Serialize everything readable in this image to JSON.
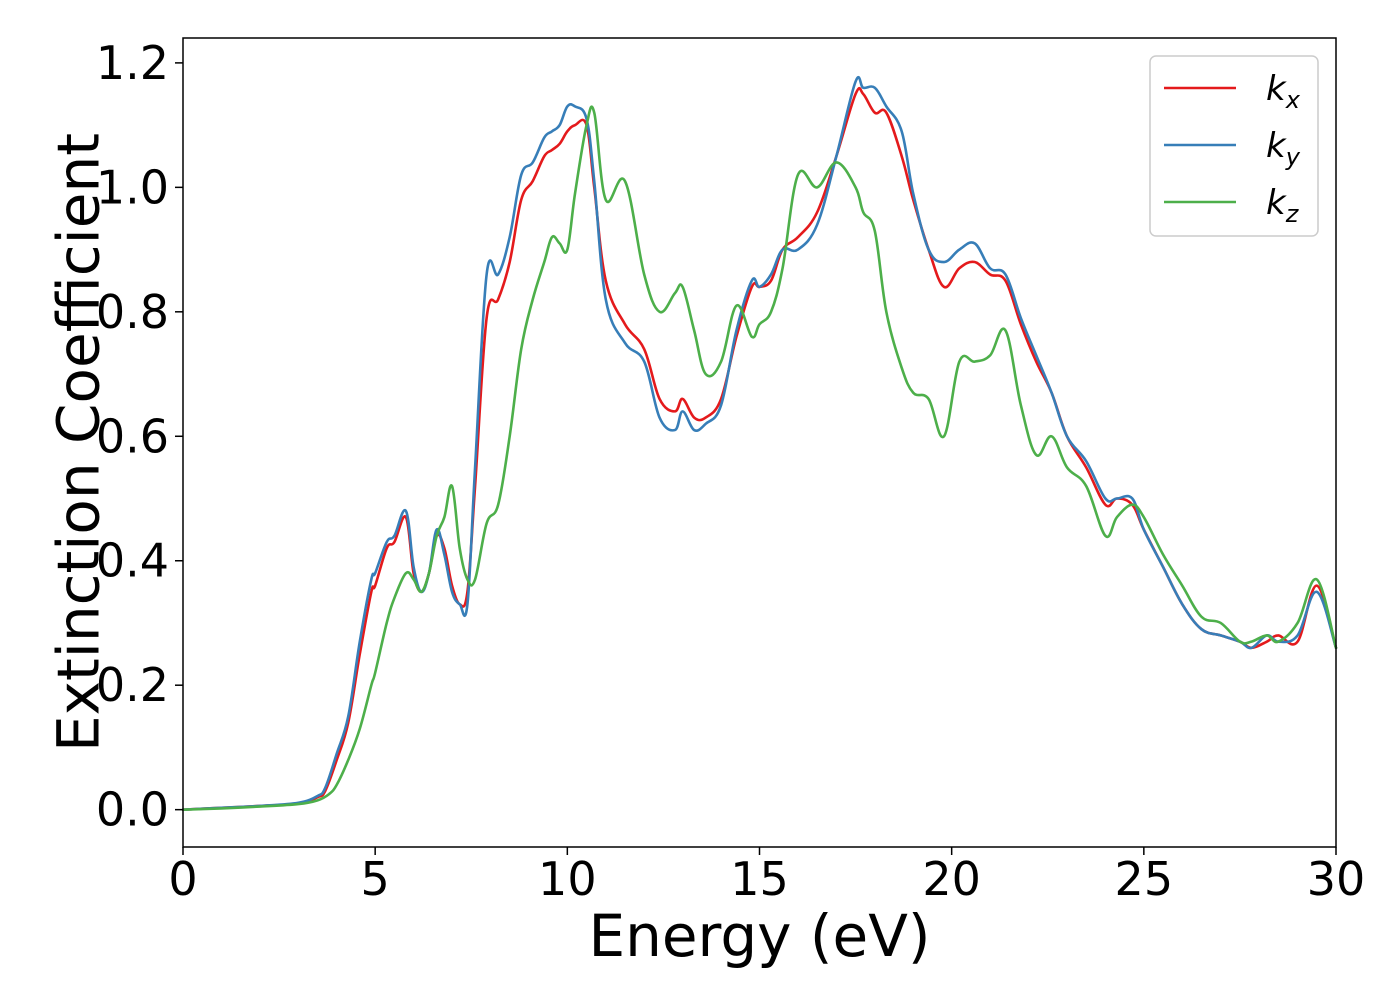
{
  "chart_data": {
    "type": "line",
    "title": "",
    "xlabel": "Energy (eV)",
    "ylabel": "Extinction Coefficient",
    "xlim": [
      0,
      30
    ],
    "ylim": [
      -0.06,
      1.24
    ],
    "xticks": [
      "0",
      "5",
      "10",
      "15",
      "20",
      "25",
      "30"
    ],
    "yticks": [
      "0.0",
      "0.2",
      "0.4",
      "0.6",
      "0.8",
      "1.0",
      "1.2"
    ],
    "grid": false,
    "legend_position": "top-right",
    "series": [
      {
        "name": "k",
        "subscript": "x",
        "color": "#e41a1c",
        "x": [
          0,
          1,
          2,
          3,
          3.5,
          3.7,
          4,
          4.3,
          4.6,
          4.9,
          5.0,
          5.3,
          5.5,
          5.8,
          6.0,
          6.2,
          6.4,
          6.6,
          6.8,
          7.0,
          7.2,
          7.4,
          7.6,
          7.9,
          8.2,
          8.5,
          8.8,
          9.1,
          9.4,
          9.6,
          9.8,
          10.0,
          10.2,
          10.5,
          10.7,
          11.0,
          11.5,
          12.0,
          12.4,
          12.8,
          13.0,
          13.3,
          13.6,
          14.0,
          14.4,
          14.8,
          15.0,
          15.3,
          15.6,
          16.0,
          16.5,
          17.0,
          17.5,
          17.7,
          18.0,
          18.3,
          18.7,
          19.0,
          19.4,
          19.8,
          20.2,
          20.6,
          21.0,
          21.4,
          21.8,
          22.2,
          22.6,
          23.0,
          23.5,
          24.0,
          24.3,
          24.7,
          25.0,
          25.5,
          26.0,
          26.5,
          27.0,
          27.5,
          27.8,
          28.2,
          28.5,
          29.0,
          29.5,
          30.0
        ],
        "y": [
          0.0,
          0.003,
          0.006,
          0.01,
          0.02,
          0.03,
          0.08,
          0.14,
          0.25,
          0.35,
          0.36,
          0.42,
          0.43,
          0.47,
          0.38,
          0.35,
          0.38,
          0.44,
          0.42,
          0.36,
          0.33,
          0.35,
          0.52,
          0.79,
          0.82,
          0.88,
          0.98,
          1.01,
          1.05,
          1.06,
          1.07,
          1.09,
          1.1,
          1.1,
          1.0,
          0.85,
          0.78,
          0.74,
          0.66,
          0.64,
          0.66,
          0.63,
          0.63,
          0.66,
          0.76,
          0.84,
          0.84,
          0.85,
          0.9,
          0.92,
          0.96,
          1.05,
          1.15,
          1.15,
          1.12,
          1.12,
          1.05,
          0.98,
          0.9,
          0.84,
          0.87,
          0.88,
          0.86,
          0.85,
          0.78,
          0.72,
          0.67,
          0.6,
          0.55,
          0.49,
          0.5,
          0.49,
          0.45,
          0.39,
          0.33,
          0.29,
          0.28,
          0.27,
          0.26,
          0.27,
          0.28,
          0.27,
          0.36,
          0.26
        ]
      },
      {
        "name": "k",
        "subscript": "y",
        "color": "#377eb8",
        "x": [
          0,
          1,
          2,
          3,
          3.5,
          3.7,
          4,
          4.3,
          4.6,
          4.9,
          5.0,
          5.3,
          5.5,
          5.8,
          6.0,
          6.2,
          6.4,
          6.6,
          6.8,
          7.0,
          7.2,
          7.4,
          7.6,
          7.9,
          8.2,
          8.5,
          8.8,
          9.1,
          9.4,
          9.6,
          9.8,
          10.0,
          10.2,
          10.5,
          10.7,
          11.0,
          11.5,
          12.0,
          12.4,
          12.8,
          13.0,
          13.3,
          13.6,
          14.0,
          14.4,
          14.8,
          15.0,
          15.3,
          15.6,
          16.0,
          16.5,
          17.0,
          17.5,
          17.7,
          18.0,
          18.3,
          18.7,
          19.0,
          19.4,
          19.8,
          20.2,
          20.6,
          21.0,
          21.4,
          21.8,
          22.2,
          22.6,
          23.0,
          23.5,
          24.0,
          24.3,
          24.7,
          25.0,
          25.5,
          26.0,
          26.5,
          27.0,
          27.5,
          27.8,
          28.2,
          28.5,
          29.0,
          29.5,
          30.0
        ],
        "y": [
          0.0,
          0.003,
          0.006,
          0.011,
          0.022,
          0.035,
          0.09,
          0.15,
          0.27,
          0.37,
          0.38,
          0.43,
          0.44,
          0.48,
          0.39,
          0.35,
          0.38,
          0.45,
          0.41,
          0.35,
          0.33,
          0.33,
          0.55,
          0.86,
          0.86,
          0.92,
          1.02,
          1.04,
          1.08,
          1.09,
          1.1,
          1.13,
          1.13,
          1.11,
          1.01,
          0.82,
          0.75,
          0.72,
          0.63,
          0.61,
          0.64,
          0.61,
          0.62,
          0.65,
          0.77,
          0.85,
          0.84,
          0.86,
          0.9,
          0.9,
          0.94,
          1.05,
          1.17,
          1.16,
          1.16,
          1.13,
          1.09,
          0.99,
          0.9,
          0.88,
          0.9,
          0.91,
          0.87,
          0.86,
          0.79,
          0.73,
          0.67,
          0.6,
          0.56,
          0.5,
          0.5,
          0.5,
          0.45,
          0.39,
          0.33,
          0.29,
          0.28,
          0.27,
          0.26,
          0.28,
          0.27,
          0.28,
          0.35,
          0.26
        ]
      },
      {
        "name": "k",
        "subscript": "z",
        "color": "#4daf4a",
        "x": [
          0,
          1,
          2,
          3,
          3.5,
          3.8,
          4,
          4.3,
          4.6,
          4.9,
          5.0,
          5.3,
          5.5,
          5.8,
          6.0,
          6.2,
          6.4,
          6.6,
          6.8,
          7.0,
          7.2,
          7.4,
          7.6,
          7.9,
          8.2,
          8.5,
          8.8,
          9.1,
          9.4,
          9.6,
          9.8,
          10.0,
          10.2,
          10.5,
          10.7,
          11.0,
          11.5,
          12.0,
          12.4,
          12.8,
          13.0,
          13.3,
          13.6,
          14.0,
          14.4,
          14.8,
          15.0,
          15.3,
          15.6,
          16.0,
          16.5,
          17.0,
          17.5,
          17.7,
          18.0,
          18.3,
          18.7,
          19.0,
          19.4,
          19.8,
          20.2,
          20.6,
          21.0,
          21.4,
          21.8,
          22.2,
          22.6,
          23.0,
          23.5,
          24.0,
          24.3,
          24.7,
          25.0,
          25.5,
          26.0,
          26.5,
          27.0,
          27.5,
          27.8,
          28.2,
          28.5,
          29.0,
          29.5,
          30.0
        ],
        "y": [
          0.0,
          0.002,
          0.005,
          0.009,
          0.015,
          0.025,
          0.04,
          0.08,
          0.13,
          0.2,
          0.22,
          0.3,
          0.34,
          0.38,
          0.37,
          0.35,
          0.38,
          0.44,
          0.47,
          0.52,
          0.42,
          0.37,
          0.37,
          0.46,
          0.49,
          0.6,
          0.74,
          0.82,
          0.88,
          0.92,
          0.91,
          0.9,
          0.99,
          1.1,
          1.12,
          0.98,
          1.01,
          0.86,
          0.8,
          0.83,
          0.84,
          0.77,
          0.7,
          0.72,
          0.81,
          0.76,
          0.78,
          0.8,
          0.87,
          1.02,
          1.0,
          1.04,
          1.0,
          0.96,
          0.93,
          0.8,
          0.71,
          0.67,
          0.66,
          0.6,
          0.72,
          0.72,
          0.73,
          0.77,
          0.65,
          0.57,
          0.6,
          0.55,
          0.52,
          0.44,
          0.47,
          0.49,
          0.47,
          0.41,
          0.36,
          0.31,
          0.3,
          0.27,
          0.27,
          0.28,
          0.27,
          0.3,
          0.37,
          0.26
        ]
      }
    ]
  }
}
